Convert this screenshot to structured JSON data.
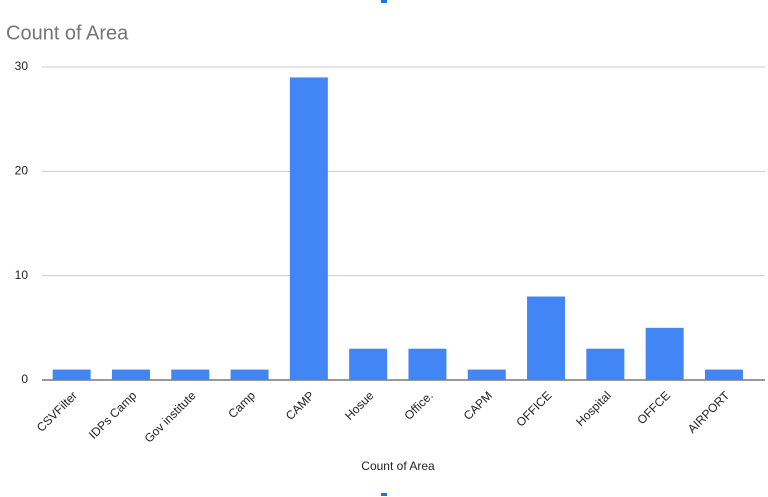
{
  "chart_data": {
    "type": "bar",
    "title": "Count of Area",
    "x_label": "Count of Area",
    "categories": [
      "CSVFilter",
      "IDPs Camp",
      "Gov institute",
      "Camp",
      "CAMP",
      "Hosue",
      "Office.",
      "CAPM",
      "OFFICE",
      "Hospital",
      "OFFCE",
      "AIRPORT"
    ],
    "values": [
      1,
      1,
      1,
      1,
      29,
      3,
      3,
      1,
      8,
      3,
      5,
      1
    ],
    "color": "#4285f4",
    "ylim": [
      0,
      30
    ],
    "yticks": [
      0,
      10,
      20,
      30
    ],
    "grid": true
  }
}
